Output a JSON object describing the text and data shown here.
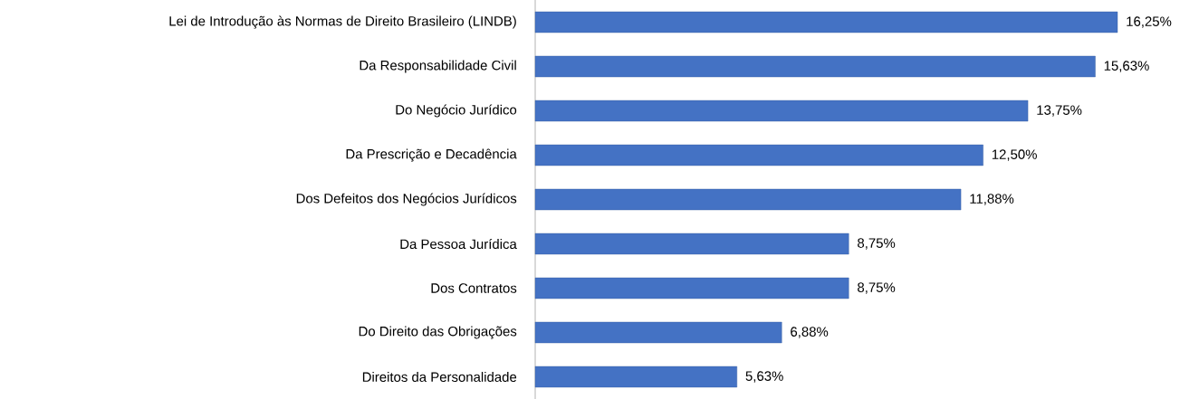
{
  "chart_data": {
    "type": "bar",
    "orientation": "horizontal",
    "color": "#4472c4",
    "categories": [
      "Lei de Introdução às Normas de Direito Brasileiro (LINDB)",
      "Da Responsabilidade Civil",
      "Do Negócio Jurídico",
      "Da Prescrição e Decadência",
      "Dos Defeitos dos Negócios Jurídicos",
      "Da Pessoa Jurídica",
      "Dos Contratos",
      "Do Direito das Obrigações",
      "Direitos da Personalidade"
    ],
    "values": [
      16.25,
      15.63,
      13.75,
      12.5,
      11.88,
      8.75,
      8.75,
      6.88,
      5.63
    ],
    "value_labels": [
      "16,25%",
      "15,63%",
      "13,75%",
      "12,50%",
      "11,88%",
      "8,75%",
      "8,75%",
      "6,88%",
      "5,63%"
    ]
  }
}
